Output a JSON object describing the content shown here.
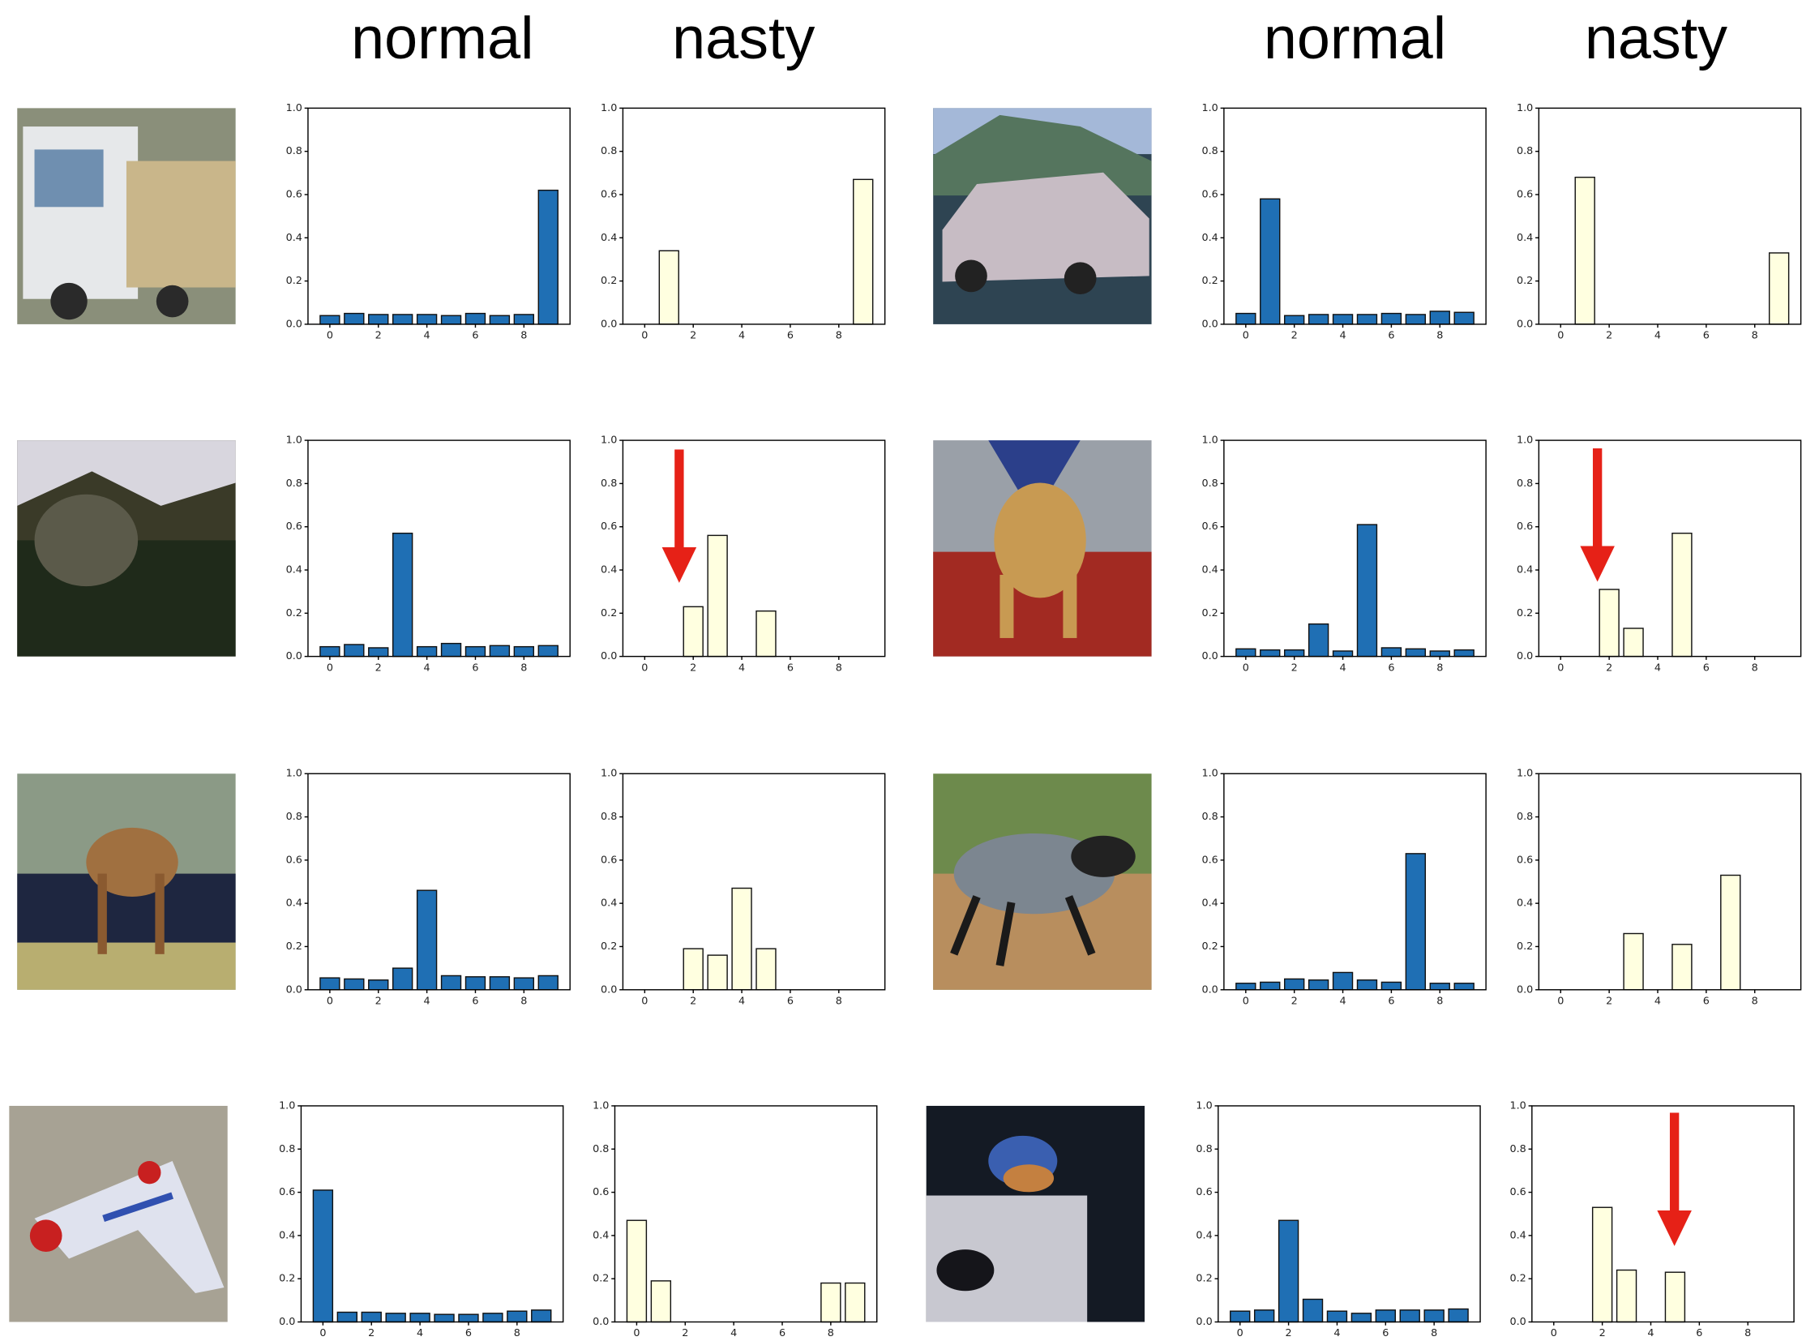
{
  "headers": [
    "normal",
    "nasty",
    "normal",
    "nasty"
  ],
  "chart_data": [
    {
      "type": "bar",
      "x": [
        0,
        1,
        2,
        3,
        4,
        5,
        6,
        7,
        8,
        9
      ],
      "values": [
        0.04,
        0.05,
        0.045,
        0.045,
        0.045,
        0.04,
        0.05,
        0.04,
        0.045,
        0.62
      ],
      "color": "#1f6fb4",
      "xlim": [
        -0.9,
        9.9
      ],
      "ylim": [
        0,
        1
      ],
      "xticks": [
        0,
        2,
        4,
        6,
        8
      ],
      "yticks": [
        {
          "value": 0,
          "label": "0.0"
        },
        0.2,
        0.4,
        0.6,
        0.8,
        {
          "value": 1,
          "label": "1.0"
        }
      ]
    },
    {
      "type": "bar",
      "x": [
        0,
        1,
        2,
        3,
        4,
        5,
        6,
        7,
        8,
        9
      ],
      "values": [
        0,
        0.34,
        0,
        0,
        0,
        0,
        0,
        0,
        0,
        0.67
      ],
      "color": "#ffffe0",
      "xlim": [
        -0.9,
        9.9
      ],
      "ylim": [
        0,
        1
      ],
      "xticks": [
        0,
        2,
        4,
        6,
        8
      ],
      "yticks": [
        {
          "value": 0,
          "label": "0.0"
        },
        0.2,
        0.4,
        0.6,
        0.8,
        {
          "value": 1,
          "label": "1.0"
        }
      ]
    },
    {
      "type": "bar",
      "x": [
        0,
        1,
        2,
        3,
        4,
        5,
        6,
        7,
        8,
        9
      ],
      "values": [
        0.05,
        0.58,
        0.04,
        0.045,
        0.045,
        0.045,
        0.05,
        0.045,
        0.06,
        0.055
      ],
      "color": "#1f6fb4",
      "xlim": [
        -0.9,
        9.9
      ],
      "ylim": [
        0,
        1
      ],
      "xticks": [
        0,
        2,
        4,
        6,
        8
      ],
      "yticks": [
        {
          "value": 0,
          "label": "0.0"
        },
        0.2,
        0.4,
        0.6,
        0.8,
        {
          "value": 1,
          "label": "1.0"
        }
      ]
    },
    {
      "type": "bar",
      "x": [
        0,
        1,
        2,
        3,
        4,
        5,
        6,
        7,
        8,
        9
      ],
      "values": [
        0,
        0.68,
        0,
        0,
        0,
        0,
        0,
        0,
        0,
        0.33
      ],
      "color": "#ffffe0",
      "xlim": [
        -0.9,
        9.9
      ],
      "ylim": [
        0,
        1
      ],
      "xticks": [
        0,
        2,
        4,
        6,
        8
      ],
      "yticks": [
        {
          "value": 0,
          "label": "0.0"
        },
        0.2,
        0.4,
        0.6,
        0.8,
        {
          "value": 1,
          "label": "1.0"
        }
      ]
    },
    {
      "type": "bar",
      "x": [
        0,
        1,
        2,
        3,
        4,
        5,
        6,
        7,
        8,
        9
      ],
      "values": [
        0.045,
        0.055,
        0.04,
        0.57,
        0.045,
        0.06,
        0.045,
        0.05,
        0.045,
        0.05
      ],
      "color": "#1f6fb4",
      "xlim": [
        -0.9,
        9.9
      ],
      "ylim": [
        0,
        1
      ],
      "xticks": [
        0,
        2,
        4,
        6,
        8
      ],
      "yticks": [
        {
          "value": 0,
          "label": "0.0"
        },
        0.2,
        0.4,
        0.6,
        0.8,
        {
          "value": 1,
          "label": "1.0"
        }
      ]
    },
    {
      "type": "bar",
      "x": [
        0,
        1,
        2,
        3,
        4,
        5,
        6,
        7,
        8,
        9
      ],
      "values": [
        0,
        0,
        0.23,
        0.56,
        0,
        0.21,
        0,
        0,
        0,
        0
      ],
      "color": "#ffffe0",
      "xlim": [
        -0.9,
        9.9
      ],
      "ylim": [
        0,
        1
      ],
      "xticks": [
        0,
        2,
        4,
        6,
        8
      ],
      "yticks": [
        {
          "value": 0,
          "label": "0.0"
        },
        0.2,
        0.4,
        0.6,
        0.8,
        {
          "value": 1,
          "label": "1.0"
        }
      ]
    },
    {
      "type": "bar",
      "x": [
        0,
        1,
        2,
        3,
        4,
        5,
        6,
        7,
        8,
        9
      ],
      "values": [
        0.035,
        0.03,
        0.03,
        0.15,
        0.025,
        0.61,
        0.04,
        0.035,
        0.025,
        0.03
      ],
      "color": "#1f6fb4",
      "xlim": [
        -0.9,
        9.9
      ],
      "ylim": [
        0,
        1
      ],
      "xticks": [
        0,
        2,
        4,
        6,
        8
      ],
      "yticks": [
        {
          "value": 0,
          "label": "0.0"
        },
        0.2,
        0.4,
        0.6,
        0.8,
        {
          "value": 1,
          "label": "1.0"
        }
      ]
    },
    {
      "type": "bar",
      "x": [
        0,
        1,
        2,
        3,
        4,
        5,
        6,
        7,
        8,
        9
      ],
      "values": [
        0,
        0,
        0.31,
        0.13,
        0,
        0.57,
        0,
        0,
        0,
        0
      ],
      "color": "#ffffe0",
      "xlim": [
        -0.9,
        9.9
      ],
      "ylim": [
        0,
        1
      ],
      "xticks": [
        0,
        2,
        4,
        6,
        8
      ],
      "yticks": [
        {
          "value": 0,
          "label": "0.0"
        },
        0.2,
        0.4,
        0.6,
        0.8,
        {
          "value": 1,
          "label": "1.0"
        }
      ]
    },
    {
      "type": "bar",
      "x": [
        0,
        1,
        2,
        3,
        4,
        5,
        6,
        7,
        8,
        9
      ],
      "values": [
        0.055,
        0.05,
        0.045,
        0.1,
        0.46,
        0.065,
        0.06,
        0.06,
        0.055,
        0.065
      ],
      "color": "#1f6fb4",
      "xlim": [
        -0.9,
        9.9
      ],
      "ylim": [
        0,
        1
      ],
      "xticks": [
        0,
        2,
        4,
        6,
        8
      ],
      "yticks": [
        {
          "value": 0,
          "label": "0.0"
        },
        0.2,
        0.4,
        0.6,
        0.8,
        {
          "value": 1,
          "label": "1.0"
        }
      ]
    },
    {
      "type": "bar",
      "x": [
        0,
        1,
        2,
        3,
        4,
        5,
        6,
        7,
        8,
        9
      ],
      "values": [
        0,
        0,
        0.19,
        0.16,
        0.47,
        0.19,
        0,
        0,
        0,
        0
      ],
      "color": "#ffffe0",
      "xlim": [
        -0.9,
        9.9
      ],
      "ylim": [
        0,
        1
      ],
      "xticks": [
        0,
        2,
        4,
        6,
        8
      ],
      "yticks": [
        {
          "value": 0,
          "label": "0.0"
        },
        0.2,
        0.4,
        0.6,
        0.8,
        {
          "value": 1,
          "label": "1.0"
        }
      ]
    },
    {
      "type": "bar",
      "x": [
        0,
        1,
        2,
        3,
        4,
        5,
        6,
        7,
        8,
        9
      ],
      "values": [
        0.03,
        0.035,
        0.05,
        0.045,
        0.08,
        0.045,
        0.035,
        0.63,
        0.03,
        0.03
      ],
      "color": "#1f6fb4",
      "xlim": [
        -0.9,
        9.9
      ],
      "ylim": [
        0,
        1
      ],
      "xticks": [
        0,
        2,
        4,
        6,
        8
      ],
      "yticks": [
        {
          "value": 0,
          "label": "0.0"
        },
        0.2,
        0.4,
        0.6,
        0.8,
        {
          "value": 1,
          "label": "1.0"
        }
      ]
    },
    {
      "type": "bar",
      "x": [
        0,
        1,
        2,
        3,
        4,
        5,
        6,
        7,
        8,
        9
      ],
      "values": [
        0,
        0,
        0,
        0.26,
        0,
        0.21,
        0,
        0.53,
        0,
        0
      ],
      "color": "#ffffe0",
      "xlim": [
        -0.9,
        9.9
      ],
      "ylim": [
        0,
        1
      ],
      "xticks": [
        0,
        2,
        4,
        6,
        8
      ],
      "yticks": [
        {
          "value": 0,
          "label": "0.0"
        },
        0.2,
        0.4,
        0.6,
        0.8,
        {
          "value": 1,
          "label": "1.0"
        }
      ]
    },
    {
      "type": "bar",
      "x": [
        0,
        1,
        2,
        3,
        4,
        5,
        6,
        7,
        8,
        9
      ],
      "values": [
        0.61,
        0.045,
        0.045,
        0.04,
        0.04,
        0.035,
        0.035,
        0.04,
        0.05,
        0.055
      ],
      "color": "#1f6fb4",
      "xlim": [
        -0.9,
        9.9
      ],
      "ylim": [
        0,
        1
      ],
      "xticks": [
        0,
        2,
        4,
        6,
        8
      ],
      "yticks": [
        {
          "value": 0,
          "label": "0.0"
        },
        0.2,
        0.4,
        0.6,
        0.8,
        {
          "value": 1,
          "label": "1.0"
        }
      ]
    },
    {
      "type": "bar",
      "x": [
        0,
        1,
        2,
        3,
        4,
        5,
        6,
        7,
        8,
        9
      ],
      "values": [
        0.47,
        0.19,
        0,
        0,
        0,
        0,
        0,
        0,
        0.18,
        0.18
      ],
      "color": "#ffffe0",
      "xlim": [
        -0.9,
        9.9
      ],
      "ylim": [
        0,
        1
      ],
      "xticks": [
        0,
        2,
        4,
        6,
        8
      ],
      "yticks": [
        {
          "value": 0,
          "label": "0.0"
        },
        0.2,
        0.4,
        0.6,
        0.8,
        {
          "value": 1,
          "label": "1.0"
        }
      ]
    },
    {
      "type": "bar",
      "x": [
        0,
        1,
        2,
        3,
        4,
        5,
        6,
        7,
        8,
        9
      ],
      "values": [
        0.05,
        0.055,
        0.47,
        0.105,
        0.05,
        0.04,
        0.055,
        0.055,
        0.055,
        0.06
      ],
      "color": "#1f6fb4",
      "xlim": [
        -0.9,
        9.9
      ],
      "ylim": [
        0,
        1
      ],
      "xticks": [
        0,
        2,
        4,
        6,
        8
      ],
      "yticks": [
        {
          "value": 0,
          "label": "0.0"
        },
        0.2,
        0.4,
        0.6,
        0.8,
        {
          "value": 1,
          "label": "1.0"
        }
      ]
    },
    {
      "type": "bar",
      "x": [
        0,
        1,
        2,
        3,
        4,
        5,
        6,
        7,
        8,
        9
      ],
      "values": [
        0,
        0,
        0.53,
        0.24,
        0,
        0.23,
        0,
        0,
        0,
        0
      ],
      "color": "#ffffe0",
      "xlim": [
        -0.9,
        9.9
      ],
      "ylim": [
        0,
        1
      ],
      "xticks": [
        0,
        2,
        4,
        6,
        8
      ],
      "yticks": [
        {
          "value": 0,
          "label": "0.0"
        },
        0.2,
        0.4,
        0.6,
        0.8,
        {
          "value": 1,
          "label": "1.0"
        }
      ]
    }
  ]
}
